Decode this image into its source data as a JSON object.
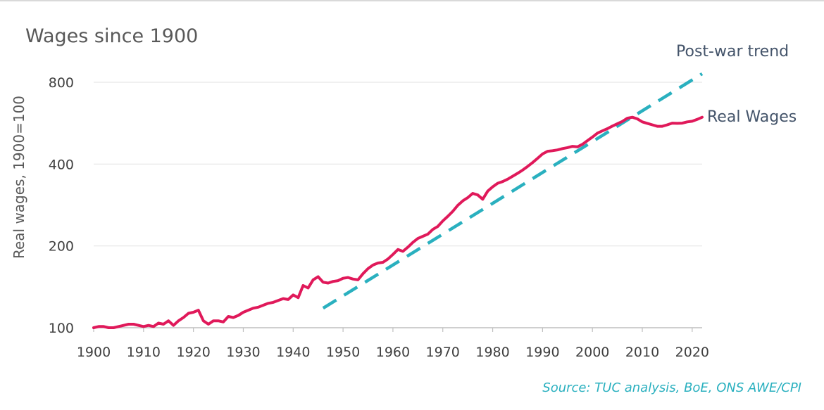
{
  "chart_data": {
    "type": "line",
    "title": "Wages since 1900",
    "ylabel": "Real wages, 1900=100",
    "xlabel": "",
    "y_scale": "log",
    "ylim": [
      100,
      850
    ],
    "xlim": [
      1900,
      2022
    ],
    "x_ticks": [
      1900,
      1910,
      1920,
      1930,
      1940,
      1950,
      1960,
      1970,
      1980,
      1990,
      2000,
      2010,
      2020
    ],
    "y_ticks": [
      100,
      200,
      400,
      800
    ],
    "grid": "horizontal",
    "source": "Source: TUC analysis, BoE, ONS AWE/CPI",
    "series": [
      {
        "name": "Real Wages",
        "color": "#e0195a",
        "style": "solid",
        "x": [
          1900,
          1901,
          1902,
          1903,
          1904,
          1905,
          1906,
          1907,
          1908,
          1909,
          1910,
          1911,
          1912,
          1913,
          1914,
          1915,
          1916,
          1917,
          1918,
          1919,
          1920,
          1921,
          1922,
          1923,
          1924,
          1925,
          1926,
          1927,
          1928,
          1929,
          1930,
          1931,
          1932,
          1933,
          1934,
          1935,
          1936,
          1937,
          1938,
          1939,
          1940,
          1941,
          1942,
          1943,
          1944,
          1945,
          1946,
          1947,
          1948,
          1949,
          1950,
          1951,
          1952,
          1953,
          1954,
          1955,
          1956,
          1957,
          1958,
          1959,
          1960,
          1961,
          1962,
          1963,
          1964,
          1965,
          1966,
          1967,
          1968,
          1969,
          1970,
          1971,
          1972,
          1973,
          1974,
          1975,
          1976,
          1977,
          1978,
          1979,
          1980,
          1981,
          1982,
          1983,
          1984,
          1985,
          1986,
          1987,
          1988,
          1989,
          1990,
          1991,
          1992,
          1993,
          1994,
          1995,
          1996,
          1997,
          1998,
          1999,
          2000,
          2001,
          2002,
          2003,
          2004,
          2005,
          2006,
          2007,
          2008,
          2009,
          2010,
          2011,
          2012,
          2013,
          2014,
          2015,
          2016,
          2017,
          2018,
          2019,
          2020,
          2021,
          2022
        ],
        "values": [
          100,
          101,
          101,
          100,
          100,
          101,
          102,
          103,
          103,
          102,
          101,
          102,
          101,
          104,
          103,
          106,
          102,
          106,
          109,
          113,
          114,
          116,
          106,
          103,
          106,
          106,
          105,
          110,
          109,
          111,
          114,
          116,
          118,
          119,
          121,
          123,
          124,
          126,
          128,
          127,
          132,
          129,
          143,
          140,
          150,
          154,
          147,
          146,
          148,
          149,
          152,
          153,
          151,
          150,
          158,
          165,
          170,
          173,
          174,
          179,
          186,
          194,
          191,
          198,
          206,
          213,
          217,
          221,
          230,
          236,
          247,
          257,
          268,
          282,
          293,
          301,
          312,
          308,
          297,
          318,
          330,
          340,
          345,
          352,
          361,
          370,
          380,
          392,
          405,
          420,
          436,
          446,
          448,
          451,
          456,
          460,
          465,
          463,
          473,
          488,
          503,
          520,
          530,
          540,
          552,
          563,
          574,
          590,
          595,
          587,
          572,
          565,
          558,
          551,
          551,
          558,
          566,
          565,
          566,
          572,
          575,
          584,
          595
        ]
      },
      {
        "name": "Post-war trend",
        "color": "#2ab0bf",
        "style": "dashed",
        "x": [
          1946,
          2022
        ],
        "values": [
          118,
          860
        ]
      }
    ]
  }
}
